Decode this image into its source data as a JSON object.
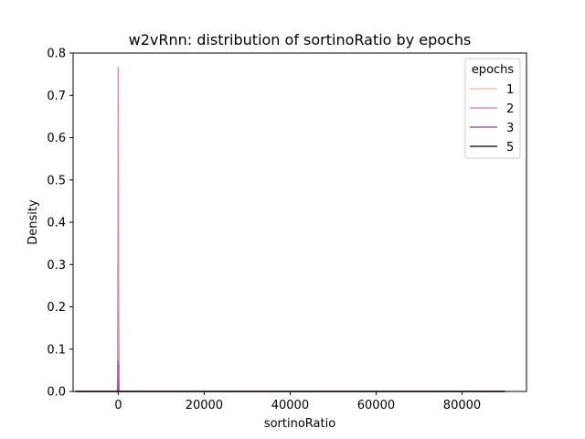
{
  "chart_data": {
    "type": "line",
    "title": "w2vRnn: distribution of sortinoRatio by epochs",
    "xlabel": "sortinoRatio",
    "ylabel": "Density",
    "xlim": [
      -10500,
      95000
    ],
    "ylim": [
      0,
      0.8
    ],
    "xticks": [
      0,
      20000,
      40000,
      60000,
      80000
    ],
    "xtick_labels": [
      "0",
      "20000",
      "40000",
      "60000",
      "80000"
    ],
    "yticks": [
      0.0,
      0.1,
      0.2,
      0.3,
      0.4,
      0.5,
      0.6,
      0.7,
      0.8
    ],
    "ytick_labels": [
      "0.0",
      "0.1",
      "0.2",
      "0.3",
      "0.4",
      "0.5",
      "0.6",
      "0.7",
      "0.8"
    ],
    "grid": false,
    "legend": {
      "title": "epochs",
      "placement": "top-right"
    },
    "series": [
      {
        "name": "1",
        "color": "#f3c2bb",
        "x": [
          -10000,
          -200,
          -60,
          0,
          60,
          200,
          90000
        ],
        "y": [
          0,
          0,
          0.3,
          0.67,
          0.3,
          0,
          0
        ]
      },
      {
        "name": "2",
        "color": "#dd8fa6",
        "x": [
          -10000,
          -150,
          -40,
          0,
          40,
          150,
          90000
        ],
        "y": [
          0,
          0,
          0.4,
          0.765,
          0.4,
          0,
          0
        ]
      },
      {
        "name": "3",
        "color": "#a35d91",
        "x": [
          -10000,
          -200,
          -60,
          0,
          60,
          200,
          90000
        ],
        "y": [
          0,
          0,
          0.03,
          0.07,
          0.03,
          0,
          0
        ]
      },
      {
        "name": "5",
        "color": "#2d1e3e",
        "x": [
          -10000,
          0,
          90000
        ],
        "y": [
          0,
          0,
          0
        ]
      }
    ]
  }
}
